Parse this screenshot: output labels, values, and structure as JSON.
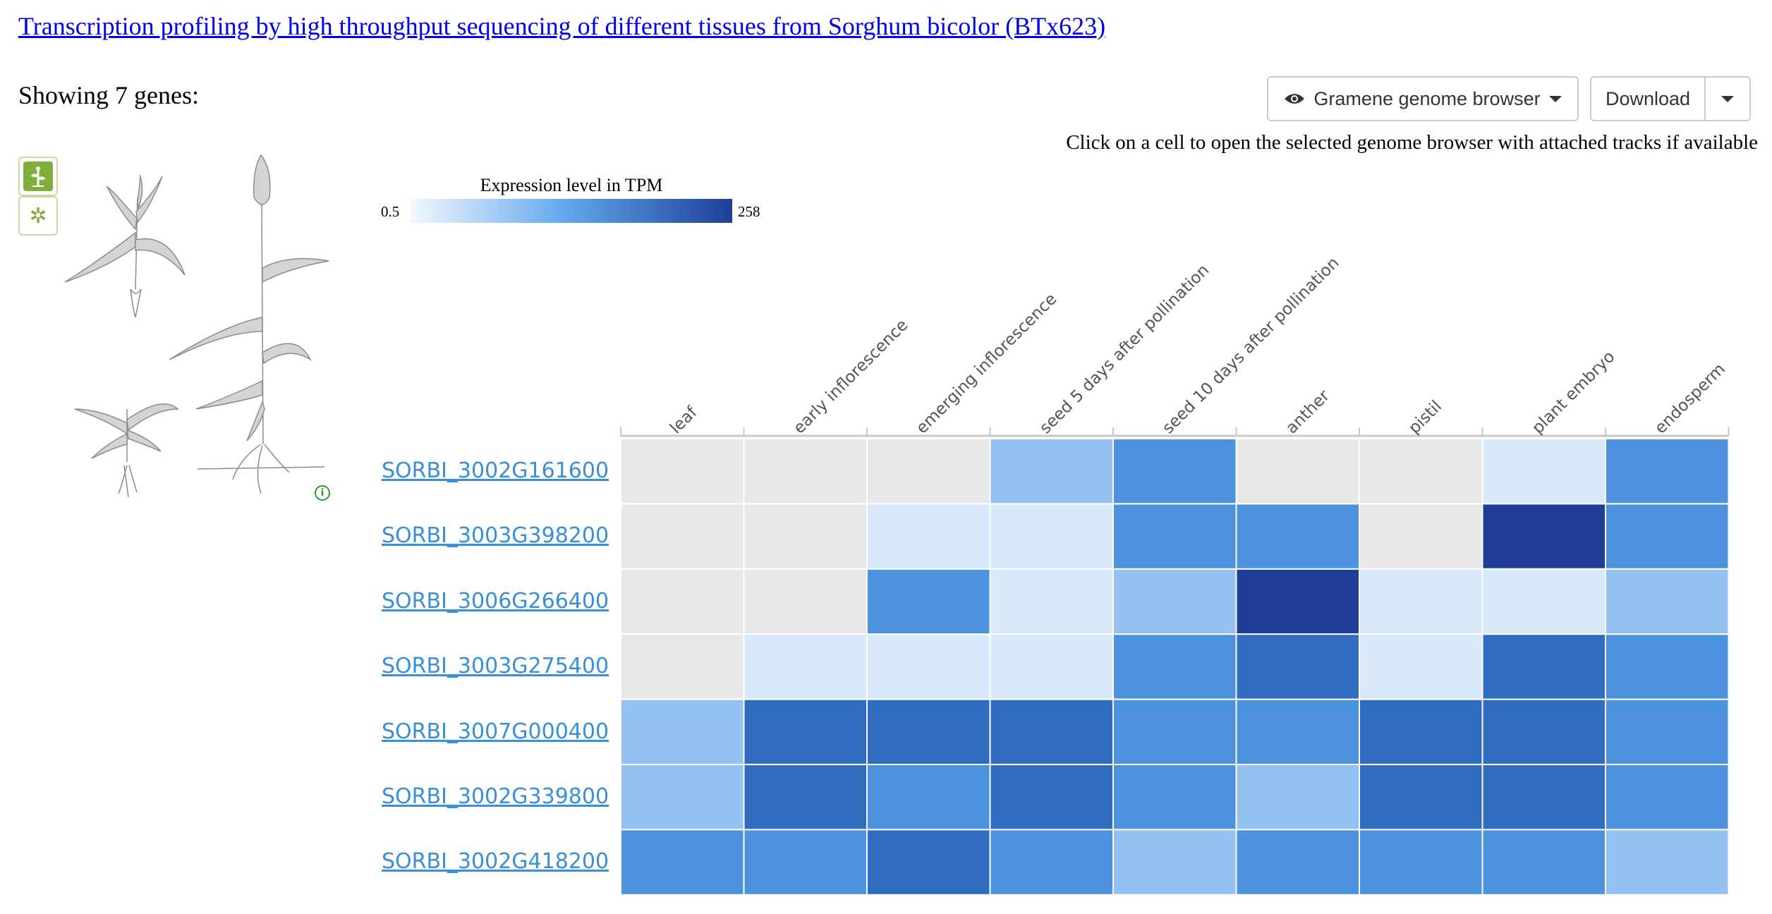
{
  "header": {
    "title": "Transcription profiling by high throughput sequencing of different tissues from Sorghum bicolor (BTx623)",
    "showing": "Showing 7 genes:"
  },
  "toolbar": {
    "browser_label": "Gramene genome browser",
    "download_label": "Download",
    "hint": "Click on a cell to open the selected genome browser with attached tracks if available"
  },
  "legend": {
    "title": "Expression level in TPM",
    "min": "0.5",
    "max": "258",
    "color_low": "#f2f8fe",
    "color_high": "#1f3f96"
  },
  "colors": {
    "no_data": "#e8e8e8",
    "grid": "#ffffff",
    "link": "#3a8fd9",
    "accent": "#7fae3a"
  },
  "heatmap": {
    "columns": [
      "leaf",
      "early inflorescence",
      "emerging inflorescence",
      "seed 5 days after pollination",
      "seed 10 days after pollination",
      "anther",
      "pistil",
      "plant embryo",
      "endosperm"
    ],
    "genes": [
      "SORBI_3002G161600",
      "SORBI_3003G398200",
      "SORBI_3006G266400",
      "SORBI_3003G275400",
      "SORBI_3007G000400",
      "SORBI_3002G339800",
      "SORBI_3002G418200"
    ],
    "levels": [
      [
        null,
        null,
        null,
        0.3,
        0.6,
        null,
        null,
        0.08,
        0.6
      ],
      [
        null,
        null,
        0.08,
        0.08,
        0.6,
        0.6,
        null,
        1.0,
        0.6
      ],
      [
        null,
        null,
        0.6,
        0.08,
        0.3,
        1.0,
        0.08,
        0.08,
        0.3
      ],
      [
        null,
        0.08,
        0.08,
        0.08,
        0.6,
        0.8,
        0.08,
        0.8,
        0.6
      ],
      [
        0.3,
        0.8,
        0.8,
        0.8,
        0.6,
        0.6,
        0.8,
        0.8,
        0.6
      ],
      [
        0.3,
        0.8,
        0.6,
        0.8,
        0.6,
        0.3,
        0.8,
        0.8,
        0.6
      ],
      [
        0.6,
        0.6,
        0.8,
        0.6,
        0.3,
        0.6,
        0.6,
        0.6,
        0.3
      ]
    ]
  },
  "icons": {
    "browser": "eye-icon",
    "side_1": "plant-icon",
    "side_2": "flower-icon",
    "info": "info-icon"
  }
}
